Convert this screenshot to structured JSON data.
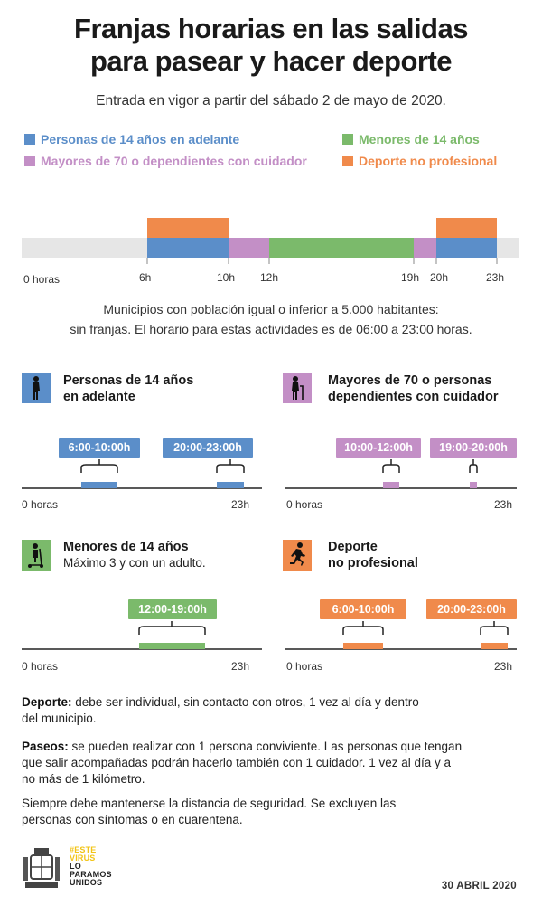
{
  "title_line1": "Franjas horarias en las salidas",
  "title_line2": "para pasear y hacer deporte",
  "subtitle": "Entrada en vigor a partir del sábado 2 de mayo de 2020.",
  "colors": {
    "adults": "#5b8ec9",
    "elderly": "#c38fc6",
    "children": "#7bba6b",
    "sport": "#f08a4b",
    "track": "#e6e6e6"
  },
  "legend": {
    "adults": "Personas de 14 años en adelante",
    "elderly": "Mayores de 70 o dependientes con cuidador",
    "children": "Menores de 14 años",
    "sport": "Deporte no profesional"
  },
  "main_ticks": [
    "0 horas",
    "6h",
    "10h",
    "12h",
    "19h",
    "20h",
    "23h"
  ],
  "note_line1": "Municipios con población igual o inferior a 5.000 habitantes:",
  "note_line2": "sin franjas. El horario para estas actividades es de 06:00 a 23:00 horas.",
  "sections": {
    "adults": {
      "heading1": "Personas de 14 años",
      "heading2": "en adelante",
      "icon": "walking-person-icon",
      "slot1": "6:00-10:00h",
      "slot2": "20:00-23:00h",
      "start_label": "0 horas",
      "end_label": "23h"
    },
    "elderly": {
      "heading1": "Mayores de 70 o personas",
      "heading2": "dependientes con cuidador",
      "icon": "elderly-cane-icon",
      "slot1": "10:00-12:00h",
      "slot2": "19:00-20:00h",
      "start_label": "0 horas",
      "end_label": "23h"
    },
    "children": {
      "heading1": "Menores de 14 años",
      "heading2": "Máximo 3 y con un adulto.",
      "icon": "scooter-child-icon",
      "slot1": "12:00-19:00h",
      "start_label": "0 horas",
      "end_label": "23h"
    },
    "sport": {
      "heading1": "Deporte",
      "heading2": "no profesional",
      "icon": "running-person-icon",
      "slot1": "6:00-10:00h",
      "slot2": "20:00-23:00h",
      "start_label": "0 horas",
      "end_label": "23h"
    }
  },
  "rules": {
    "sport_label": "Deporte:",
    "sport_text_1": " debe ser individual, sin contacto con otros, 1 vez al día y dentro",
    "sport_text_2": "del municipio.",
    "walks_label": "Paseos:",
    "walks_text_1": " se pueden realizar con 1 persona conviviente. Las personas que tengan",
    "walks_text_2": "que salir acompañadas podrán hacerlo también con 1 cuidador. 1 vez al día y a",
    "walks_text_3": "no más de 1 kilómetro.",
    "safety_1": "Siempre debe mantenerse la distancia de seguridad. Se excluyen las",
    "safety_2": "personas con síntomas o en cuarentena."
  },
  "logo": {
    "line1": "#ESTE",
    "line2": "VIRUS",
    "line3": "LO",
    "line4": "PARAMOS",
    "line5": "UNIDOS",
    "accent": "#f2c417"
  },
  "date": "30 ABRIL 2020"
}
